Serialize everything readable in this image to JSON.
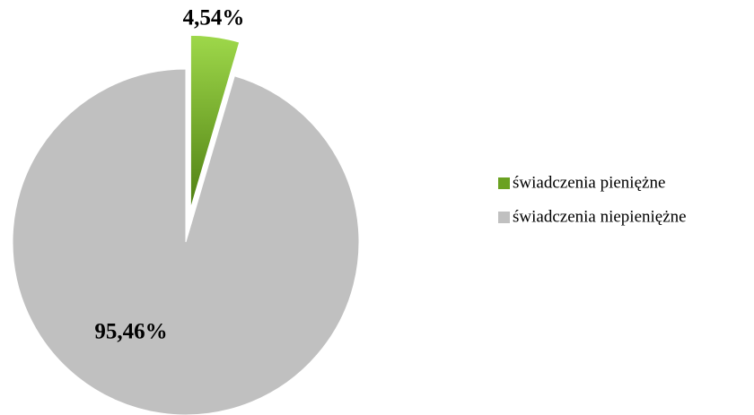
{
  "chart_data": {
    "type": "pie",
    "categories": [
      "świadczenia pieniężne",
      "świadczenia niepieniężne"
    ],
    "values": [
      4.54,
      95.46
    ],
    "value_labels": [
      "4,54%",
      "95,46%"
    ],
    "colors": [
      "#6aa121",
      "#c0c0c0"
    ],
    "legend": "right"
  }
}
